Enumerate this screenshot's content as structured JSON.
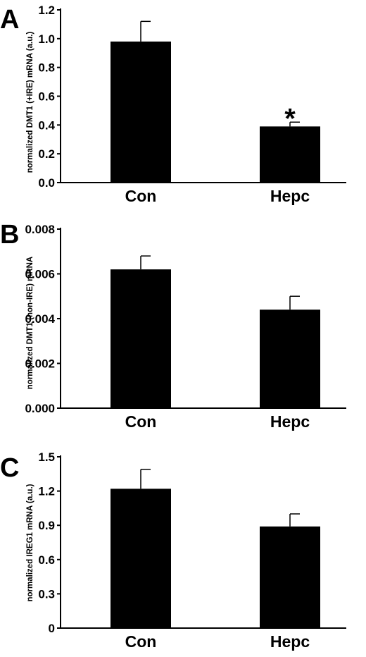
{
  "chart_data": [
    {
      "type": "bar",
      "panel_label": "A",
      "ylabel": "normalized DMT1 (+IRE) mRNA (a.u.)",
      "categories": [
        "Con",
        "Hepc"
      ],
      "values": [
        0.98,
        0.39
      ],
      "errors": [
        0.14,
        0.03
      ],
      "significance": [
        "",
        "*"
      ],
      "ylim": [
        0,
        1.2
      ],
      "yticks": [
        0,
        0.2,
        0.4,
        0.6,
        0.8,
        1.0,
        1.2
      ],
      "ytick_labels": [
        "0.0",
        "0.2",
        "0.4",
        "0.6",
        "0.8",
        "1.0",
        "1.2"
      ],
      "bar_color": "#000000",
      "grid": false
    },
    {
      "type": "bar",
      "panel_label": "B",
      "ylabel": "normalized DMT1 (non-IRE) mRNA",
      "categories": [
        "Con",
        "Hepc"
      ],
      "values": [
        0.0062,
        0.0044
      ],
      "errors": [
        0.0006,
        0.0006
      ],
      "significance": [
        "",
        ""
      ],
      "ylim": [
        0,
        0.008
      ],
      "yticks": [
        0,
        0.002,
        0.004,
        0.006,
        0.008
      ],
      "ytick_labels": [
        "0.000",
        "0.002",
        "0.004",
        "0.006",
        "0.008"
      ],
      "bar_color": "#000000",
      "grid": false
    },
    {
      "type": "bar",
      "panel_label": "C",
      "ylabel": "normalized IREG1 mRNA (a.u.)",
      "categories": [
        "Con",
        "Hepc"
      ],
      "values": [
        1.22,
        0.89
      ],
      "errors": [
        0.17,
        0.11
      ],
      "significance": [
        "",
        ""
      ],
      "ylim": [
        0,
        1.5
      ],
      "yticks": [
        0,
        0.3,
        0.6,
        0.9,
        1.2,
        1.5
      ],
      "ytick_labels": [
        "0",
        "0.3",
        "0.6",
        "0.9",
        "1.2",
        "1.5"
      ],
      "bar_color": "#000000",
      "grid": false
    }
  ]
}
